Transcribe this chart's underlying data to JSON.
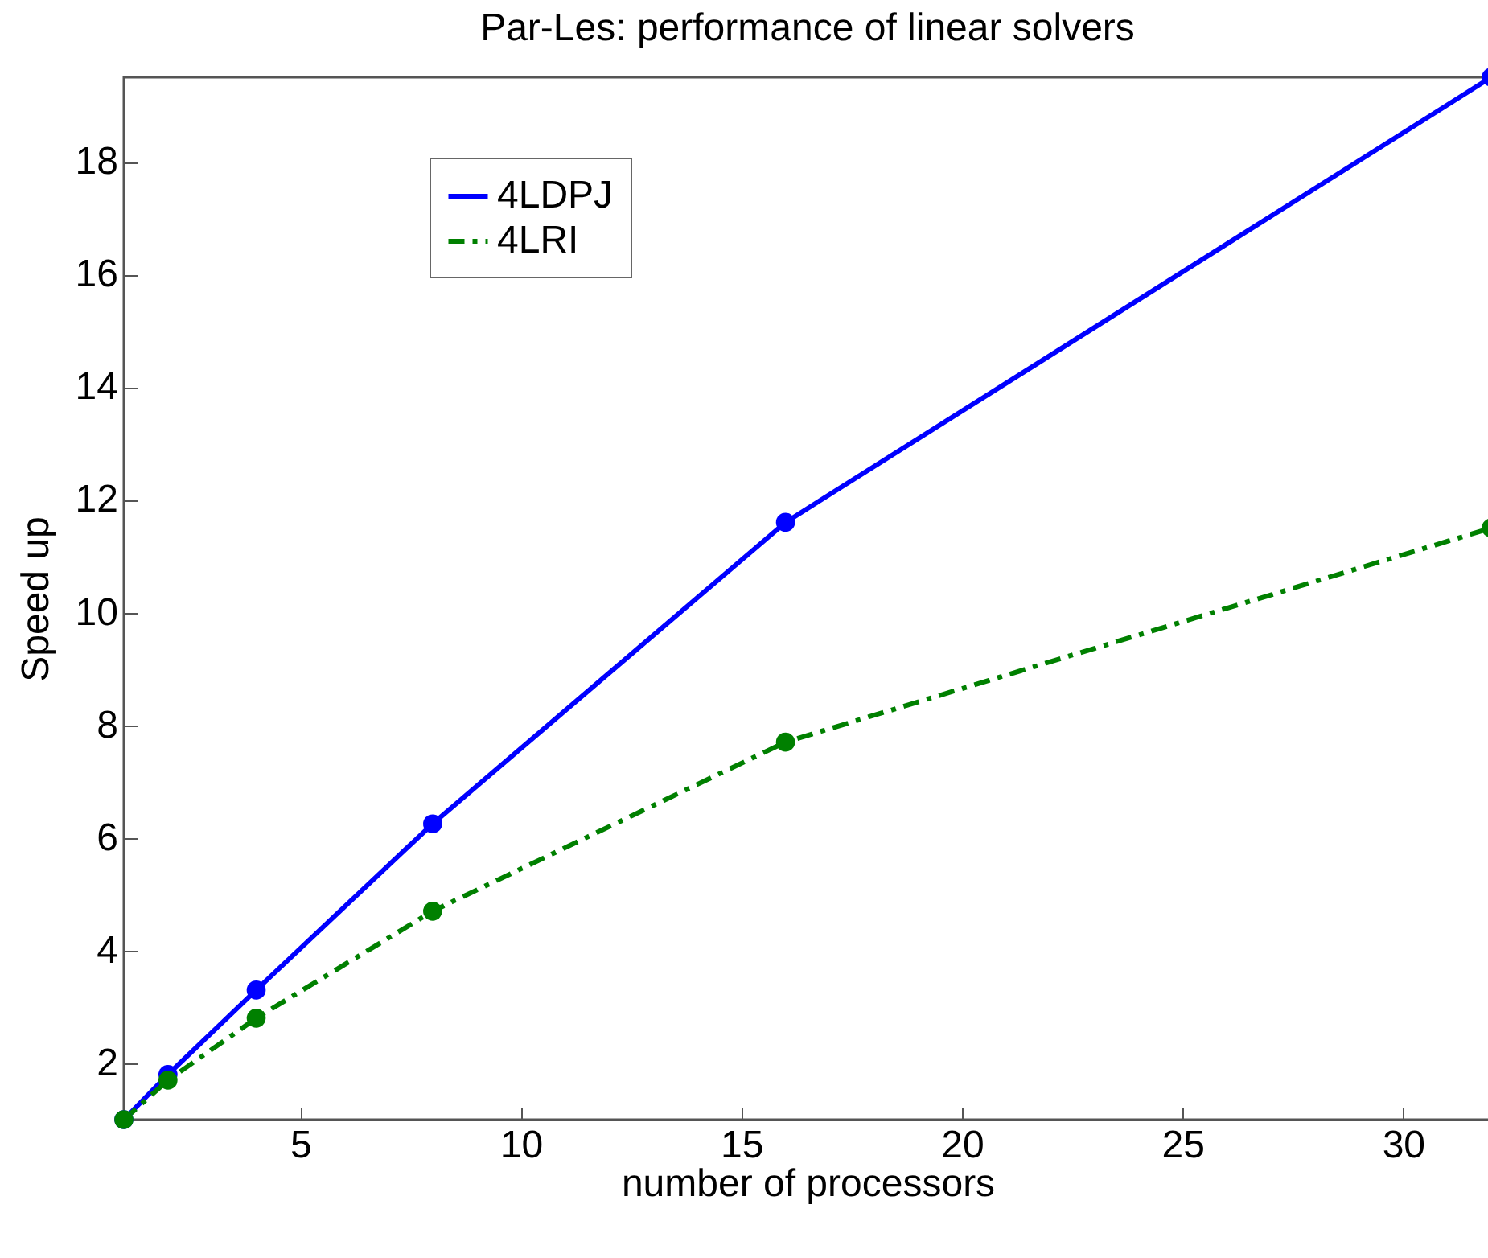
{
  "chart_data": {
    "type": "line",
    "title": "Par-Les: performance of linear solvers",
    "xlabel": "number of processors",
    "ylabel": "Speed up",
    "x": [
      1,
      2,
      4,
      8,
      16,
      32
    ],
    "series": [
      {
        "name": "4LDPJ",
        "color": "#0000ff",
        "line_style": "solid",
        "values": [
          1,
          1.8,
          3.3,
          6.25,
          11.6,
          19.5
        ]
      },
      {
        "name": "4LRI",
        "color": "#008000",
        "line_style": "dashed",
        "values": [
          1,
          1.7,
          2.8,
          4.7,
          7.7,
          11.5
        ]
      }
    ],
    "xlim": [
      1,
      32
    ],
    "xticks": [
      5,
      10,
      15,
      20,
      25,
      30
    ],
    "ylim": [
      1,
      19.5
    ],
    "yticks": [
      2,
      4,
      6,
      8,
      10,
      12,
      14,
      16,
      18
    ],
    "grid": false,
    "legend": "top left",
    "marker": "circle"
  }
}
